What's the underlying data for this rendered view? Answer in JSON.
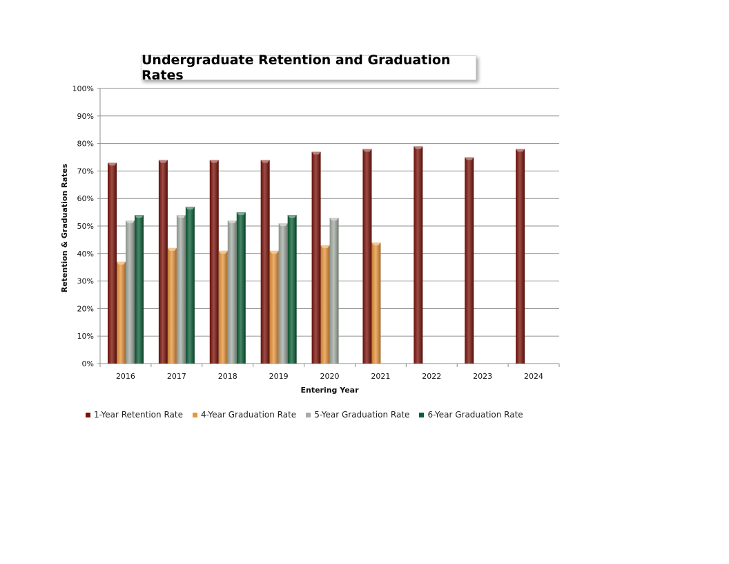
{
  "chart_data": {
    "type": "bar",
    "title": "Undergraduate Retention and Graduation Rates",
    "xlabel": "Entering Year",
    "ylabel": "Retention & Graduation Rates",
    "categories": [
      "2016",
      "2017",
      "2018",
      "2019",
      "2020",
      "2021",
      "2022",
      "2023",
      "2024"
    ],
    "ylim": [
      0,
      100
    ],
    "yticks": [
      "0%",
      "10%",
      "20%",
      "30%",
      "40%",
      "50%",
      "60%",
      "70%",
      "80%",
      "90%",
      "100%"
    ],
    "grid": true,
    "legend": "bottom",
    "series": [
      {
        "name": "1-Year Retention Rate",
        "color": "#7a1208",
        "values": [
          73,
          74,
          74,
          74,
          77,
          78,
          79,
          75,
          78
        ]
      },
      {
        "name": "4-Year Graduation Rate",
        "color": "#e8963c",
        "values": [
          37,
          42,
          41,
          41,
          43,
          44,
          null,
          null,
          null
        ]
      },
      {
        "name": "5-Year Graduation Rate",
        "color": "#a4aca4",
        "values": [
          52,
          54,
          52,
          51,
          53,
          null,
          null,
          null,
          null
        ]
      },
      {
        "name": "6-Year Graduation Rate",
        "color": "#0b5e36",
        "values": [
          54,
          57,
          55,
          54,
          null,
          null,
          null,
          null,
          null
        ]
      }
    ]
  }
}
